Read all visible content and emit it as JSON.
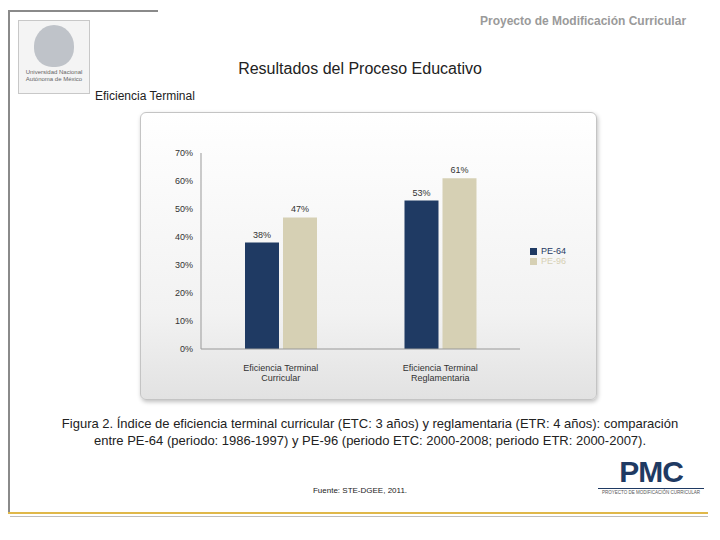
{
  "header": {
    "project": "Proyecto de Modificación Curricular",
    "title": "Resultados del Proceso Educativo",
    "subtitle": "Eficiencia Terminal",
    "university": "Universidad Nacional Autónoma de México"
  },
  "chart_data": {
    "type": "bar",
    "categories": [
      "Eficiencia Terminal Curricular",
      "Eficiencia Terminal Reglamentaria"
    ],
    "series": [
      {
        "name": "PE-64",
        "color": "#1f3a63",
        "values": [
          38,
          53
        ],
        "value_labels": [
          "38%",
          "53%"
        ]
      },
      {
        "name": "PE-96",
        "color": "#d6d0b4",
        "values": [
          47,
          61
        ],
        "value_labels": [
          "47%",
          "61%"
        ]
      }
    ],
    "ylim": [
      0,
      70
    ],
    "yticks": [
      {
        "value": 0,
        "label": "0%"
      },
      {
        "value": 10,
        "label": "10%"
      },
      {
        "value": 20,
        "label": "20%"
      },
      {
        "value": 30,
        "label": "30%"
      },
      {
        "value": 40,
        "label": "40%"
      },
      {
        "value": 50,
        "label": "50%"
      },
      {
        "value": 60,
        "label": "60%"
      },
      {
        "value": 70,
        "label": "70%"
      }
    ],
    "grid": false,
    "legend": "right",
    "data_labels": true
  },
  "caption": "Figura 2. Índice de eficiencia terminal curricular (ETC: 3 años) y reglamentaria (ETR: 4 años): comparación entre PE-64 (periodo: 1986-1997) y PE-96 (periodo ETC: 2000-2008; periodo ETR: 2000-2007).",
  "source": "Fuente: STE-DGEE, 2011.",
  "logo": {
    "text": "PMC",
    "subtitle": "PROYECTO DE MODIFICACIÓN CURRICULAR"
  }
}
